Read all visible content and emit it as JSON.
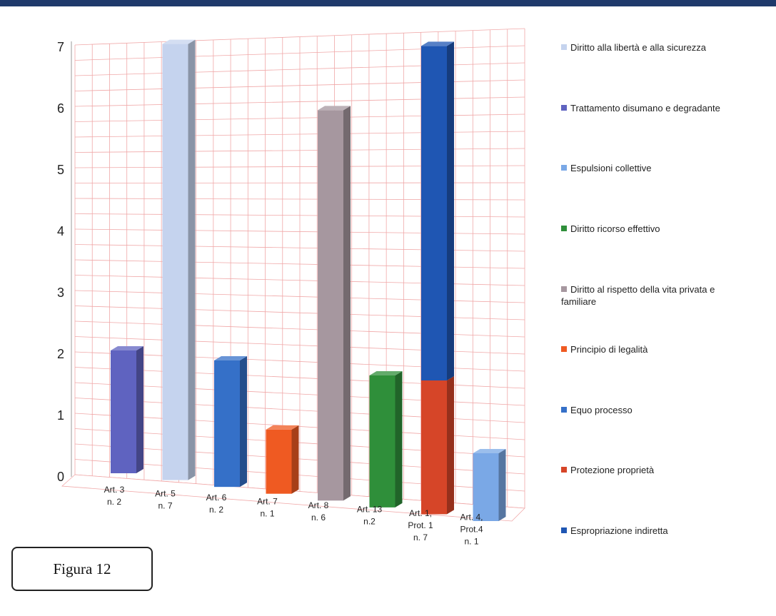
{
  "figure_label": "Figura 12",
  "chart_data": {
    "type": "bar",
    "stacked": true,
    "ylim": [
      0,
      7
    ],
    "yticks": [
      "0",
      "1",
      "2",
      "3",
      "4",
      "5",
      "6",
      "7"
    ],
    "grid": true,
    "legend_position": "right",
    "categories": [
      [
        "Art. 3",
        "n. 2"
      ],
      [
        "Art. 5",
        "n. 7"
      ],
      [
        "Art. 6",
        "n. 2"
      ],
      [
        "Art. 7",
        "n. 1"
      ],
      [
        "Art. 8",
        "n. 6"
      ],
      [
        "Art. 13",
        "n.2"
      ],
      [
        "Art. 1,",
        "Prot. 1",
        "n. 7"
      ],
      [
        "Art. 4,",
        "Prot.4",
        "n. 1"
      ]
    ],
    "series": [
      {
        "name": [
          "Diritto alla libertà e alla sicurezza"
        ],
        "color": "#c5d3ee",
        "values": [
          0,
          7,
          0,
          0,
          0,
          0,
          0,
          0
        ]
      },
      {
        "name": [
          "Trattamento disumano e degradante"
        ],
        "color": "#5f63c0",
        "values": [
          2,
          0,
          0,
          0,
          0,
          0,
          0,
          0
        ]
      },
      {
        "name": [
          "Espulsioni collettive"
        ],
        "color": "#7aa8e6",
        "values": [
          0,
          0,
          0,
          0,
          0,
          0,
          0,
          1
        ]
      },
      {
        "name": [
          "Diritto ricorso effettivo"
        ],
        "color": "#2f8f3a",
        "values": [
          0,
          0,
          0,
          0,
          0,
          2,
          0,
          0
        ]
      },
      {
        "name": [
          "Diritto al rispetto della vita privata e",
          "familiare"
        ],
        "color": "#a6979f",
        "values": [
          0,
          0,
          0,
          0,
          6,
          0,
          0,
          0
        ]
      },
      {
        "name": [
          "Principio di legalità"
        ],
        "color": "#ef5a22",
        "values": [
          0,
          0,
          0,
          1,
          0,
          0,
          0,
          0
        ]
      },
      {
        "name": [
          "Equo processo"
        ],
        "color": "#3570c8",
        "values": [
          0,
          0,
          2,
          0,
          0,
          0,
          0,
          0
        ]
      },
      {
        "name": [
          "Protezione proprietà"
        ],
        "color": "#d64528",
        "values": [
          0,
          0,
          0,
          0,
          0,
          0,
          2,
          0
        ]
      },
      {
        "name": [
          "Espropriazione indiretta"
        ],
        "color": "#1f56b3",
        "values": [
          0,
          0,
          0,
          0,
          0,
          0,
          5,
          0
        ]
      }
    ]
  }
}
